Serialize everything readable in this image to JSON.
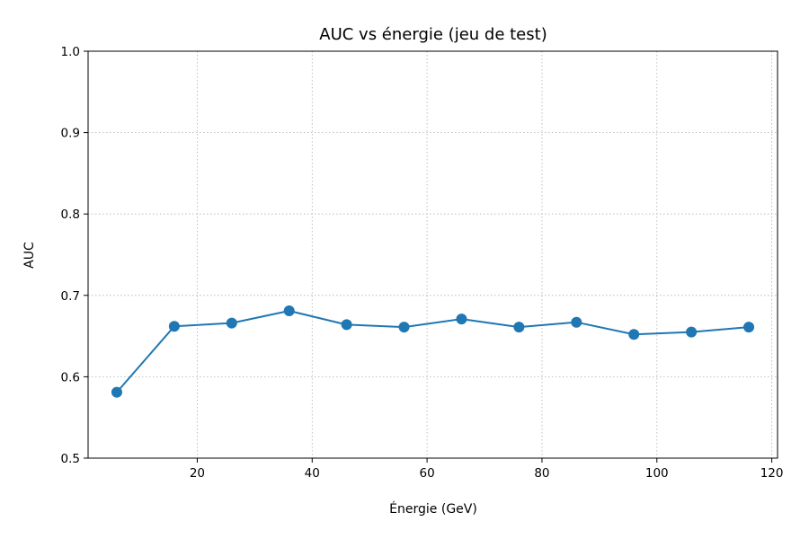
{
  "chart_data": {
    "type": "line",
    "title": "AUC vs énergie (jeu de test)",
    "xlabel": "Énergie (GeV)",
    "ylabel": "AUC",
    "xlim": [
      1,
      121
    ],
    "ylim": [
      0.5,
      1.0
    ],
    "xticks": [
      20,
      40,
      60,
      80,
      100,
      120
    ],
    "yticks": [
      0.5,
      0.6,
      0.7,
      0.8,
      0.9,
      1.0
    ],
    "xtick_labels": [
      "20",
      "40",
      "60",
      "80",
      "100",
      "120"
    ],
    "ytick_labels": [
      "0.5",
      "0.6",
      "0.7",
      "0.8",
      "0.9",
      "1.0"
    ],
    "grid": true,
    "color": "#1f77b4",
    "series": [
      {
        "x": [
          6,
          16,
          26,
          36,
          46,
          56,
          66,
          76,
          86,
          96,
          106,
          116
        ],
        "values": [
          0.581,
          0.662,
          0.666,
          0.681,
          0.664,
          0.661,
          0.671,
          0.661,
          0.667,
          0.652,
          0.655,
          0.661
        ]
      }
    ]
  }
}
